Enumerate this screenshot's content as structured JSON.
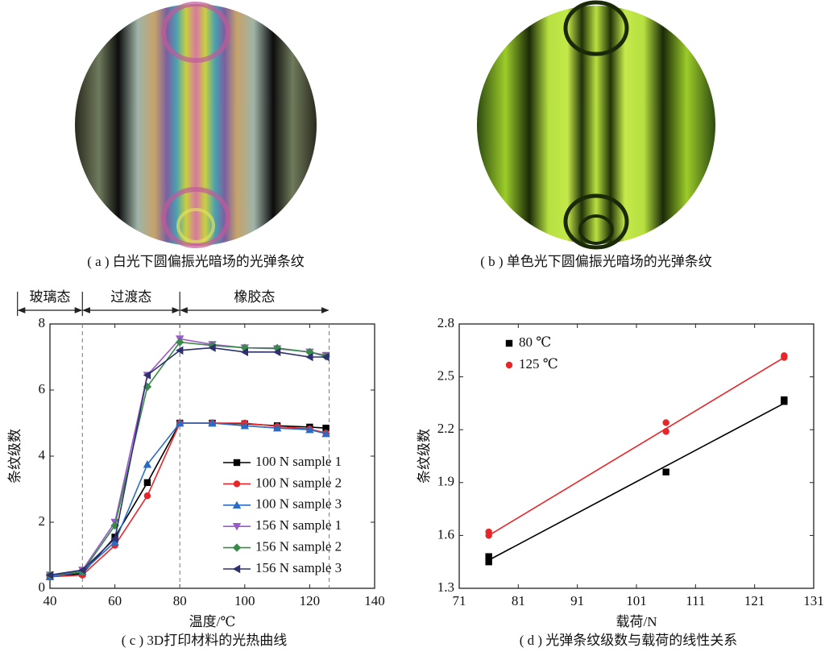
{
  "images": [
    {
      "caption": "( a ) 白光下圆偏振光暗场的光弹条纹"
    },
    {
      "caption": "( b ) 单色光下圆偏振光暗场的光弹条纹"
    }
  ],
  "chart_data": [
    {
      "type": "line",
      "caption": "( c ) 3D打印材料的光热曲线",
      "xlabel": "温度/℃",
      "ylabel": "条纹级数",
      "x": [
        40,
        50,
        60,
        70,
        80,
        90,
        100,
        110,
        120,
        125
      ],
      "xlim": [
        40,
        140
      ],
      "xticks": [
        40,
        60,
        80,
        100,
        120,
        140
      ],
      "ylim": [
        0,
        8
      ],
      "yticks": [
        0,
        2,
        4,
        6,
        8
      ],
      "legend": "lower right",
      "phases": [
        {
          "label": "玻璃态",
          "from": 30,
          "to": 50
        },
        {
          "label": "过渡态",
          "from": 50,
          "to": 80
        },
        {
          "label": "橡胶态",
          "from": 80,
          "to": 126
        }
      ],
      "series": [
        {
          "name": "100 N sample 1",
          "color": "#000000",
          "marker": "square",
          "values": [
            0.35,
            0.45,
            1.55,
            3.2,
            5.0,
            5.0,
            4.98,
            4.92,
            4.88,
            4.85
          ]
        },
        {
          "name": "100 N sample 2",
          "color": "#e8262a",
          "marker": "circle",
          "values": [
            0.35,
            0.4,
            1.3,
            2.8,
            5.0,
            5.0,
            5.0,
            4.9,
            4.82,
            4.7
          ]
        },
        {
          "name": "100 N sample 3",
          "color": "#2a6cc4",
          "marker": "triangle-up",
          "values": [
            0.35,
            0.5,
            1.4,
            3.75,
            5.0,
            5.0,
            4.92,
            4.85,
            4.8,
            4.68
          ]
        },
        {
          "name": "156 N sample 1",
          "color": "#9b59c9",
          "marker": "triangle-down",
          "values": [
            0.4,
            0.55,
            2.0,
            6.45,
            7.55,
            7.38,
            7.28,
            7.25,
            7.15,
            7.05
          ]
        },
        {
          "name": "156 N sample 2",
          "color": "#3a8a4a",
          "marker": "diamond",
          "values": [
            0.4,
            0.5,
            1.9,
            6.1,
            7.45,
            7.35,
            7.28,
            7.27,
            7.15,
            7.02
          ]
        },
        {
          "name": "156 N sample 3",
          "color": "#2e3070",
          "marker": "triangle-left",
          "values": [
            0.4,
            0.55,
            1.5,
            6.45,
            7.2,
            7.28,
            7.15,
            7.15,
            7.0,
            7.0
          ]
        }
      ]
    },
    {
      "type": "scatter",
      "caption": "( d ) 光弹条纹级数与载荷的线性关系",
      "xlabel": "载荷/N",
      "ylabel": "条纹级数",
      "xlim": [
        71,
        131
      ],
      "xticks": [
        71,
        81,
        91,
        101,
        111,
        121,
        131
      ],
      "ylim": [
        1.3,
        2.8
      ],
      "yticks": [
        1.3,
        1.6,
        1.9,
        2.2,
        2.5,
        2.8
      ],
      "legend": "upper left",
      "series": [
        {
          "name": "80 ℃",
          "color": "#000000",
          "marker": "square",
          "x": [
            76,
            76,
            106,
            126,
            126
          ],
          "values": [
            1.48,
            1.45,
            1.96,
            2.37,
            2.36
          ],
          "fit": {
            "x": [
              76,
              126
            ],
            "y": [
              1.46,
              2.35
            ]
          }
        },
        {
          "name": "125 ℃",
          "color": "#e8262a",
          "marker": "circle",
          "x": [
            76,
            76,
            106,
            106,
            126,
            126
          ],
          "values": [
            1.62,
            1.6,
            2.24,
            2.19,
            2.62,
            2.61
          ],
          "fit": {
            "x": [
              76,
              126
            ],
            "y": [
              1.6,
              2.61
            ]
          }
        }
      ]
    }
  ]
}
